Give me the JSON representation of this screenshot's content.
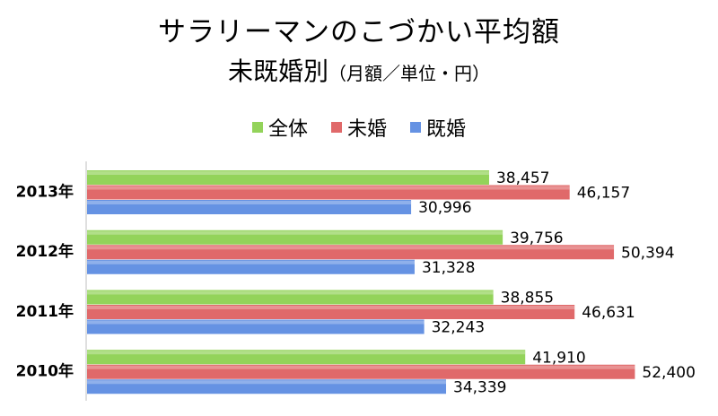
{
  "title": {
    "line1": "サラリーマンのこづかい平均額",
    "line2": "未既婚別",
    "line2_sub": "（月額／単位・円）"
  },
  "chart_data": {
    "type": "bar",
    "orientation": "horizontal",
    "categories": [
      "2013年",
      "2012年",
      "2011年",
      "2010年"
    ],
    "series": [
      {
        "name": "全体",
        "color": "#93d35a",
        "values": [
          38457,
          39756,
          38855,
          41910
        ]
      },
      {
        "name": "未婚",
        "color": "#e0696a",
        "values": [
          46157,
          50394,
          46631,
          52400
        ]
      },
      {
        "name": "既婚",
        "color": "#6592e3",
        "values": [
          30996,
          31328,
          32243,
          34339
        ]
      }
    ],
    "value_labels": [
      [
        "38,457",
        "46,157",
        "30,996"
      ],
      [
        "39,756",
        "50,394",
        "31,328"
      ],
      [
        "38,855",
        "46,631",
        "32,243"
      ],
      [
        "41,910",
        "52,400",
        "34,339"
      ]
    ],
    "xlim": [
      0,
      57000
    ],
    "legend_position": "top",
    "grid": false
  }
}
